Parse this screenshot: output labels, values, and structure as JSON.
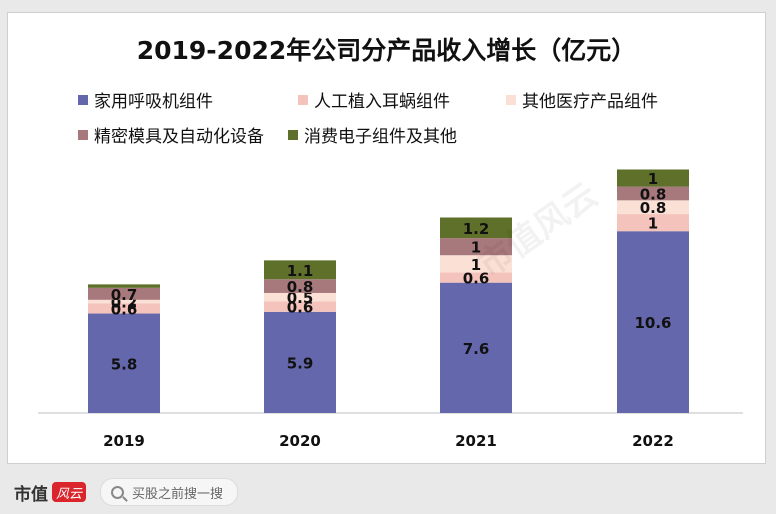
{
  "chart_data": {
    "type": "bar",
    "stacked": true,
    "title": "2019-2022年公司分产品收入增长（亿元）",
    "xlabel": "",
    "ylabel": "",
    "categories": [
      "2019",
      "2020",
      "2021",
      "2022"
    ],
    "series": [
      {
        "name": "家用呼吸机组件",
        "color": "#6467ab",
        "values": [
          5.8,
          5.9,
          7.6,
          10.6
        ],
        "labels": [
          "5.8",
          "5.9",
          "7.6",
          "10.6"
        ]
      },
      {
        "name": "人工植入耳蜗组件",
        "color": "#f4c3bb",
        "values": [
          0.6,
          0.6,
          0.6,
          1.0
        ],
        "labels": [
          "0.6",
          "0.6",
          "0.6",
          "1"
        ]
      },
      {
        "name": "其他医疗产品组件",
        "color": "#fbe0d6",
        "values": [
          0.2,
          0.5,
          1.0,
          0.8
        ],
        "labels": [
          "0.2",
          "0.5",
          "1",
          "0.8"
        ]
      },
      {
        "name": "精密模具及自动化设备",
        "color": "#a8797c",
        "values": [
          0.7,
          0.8,
          1.0,
          0.8
        ],
        "labels": [
          "0.7",
          "0.8",
          "1",
          "0.8"
        ]
      },
      {
        "name": "消费电子组件及其他",
        "color": "#5e7029",
        "values": [
          0.2,
          1.1,
          1.2,
          1.0
        ],
        "labels": [
          "",
          "1.1",
          "1.2",
          "1"
        ]
      }
    ],
    "ylim": [
      0,
      15
    ],
    "grid": false,
    "legend_position": "top"
  },
  "watermark": "市值风云",
  "footer": {
    "brand": "市值",
    "badge": "风云",
    "search_placeholder": "买股之前搜一搜"
  }
}
